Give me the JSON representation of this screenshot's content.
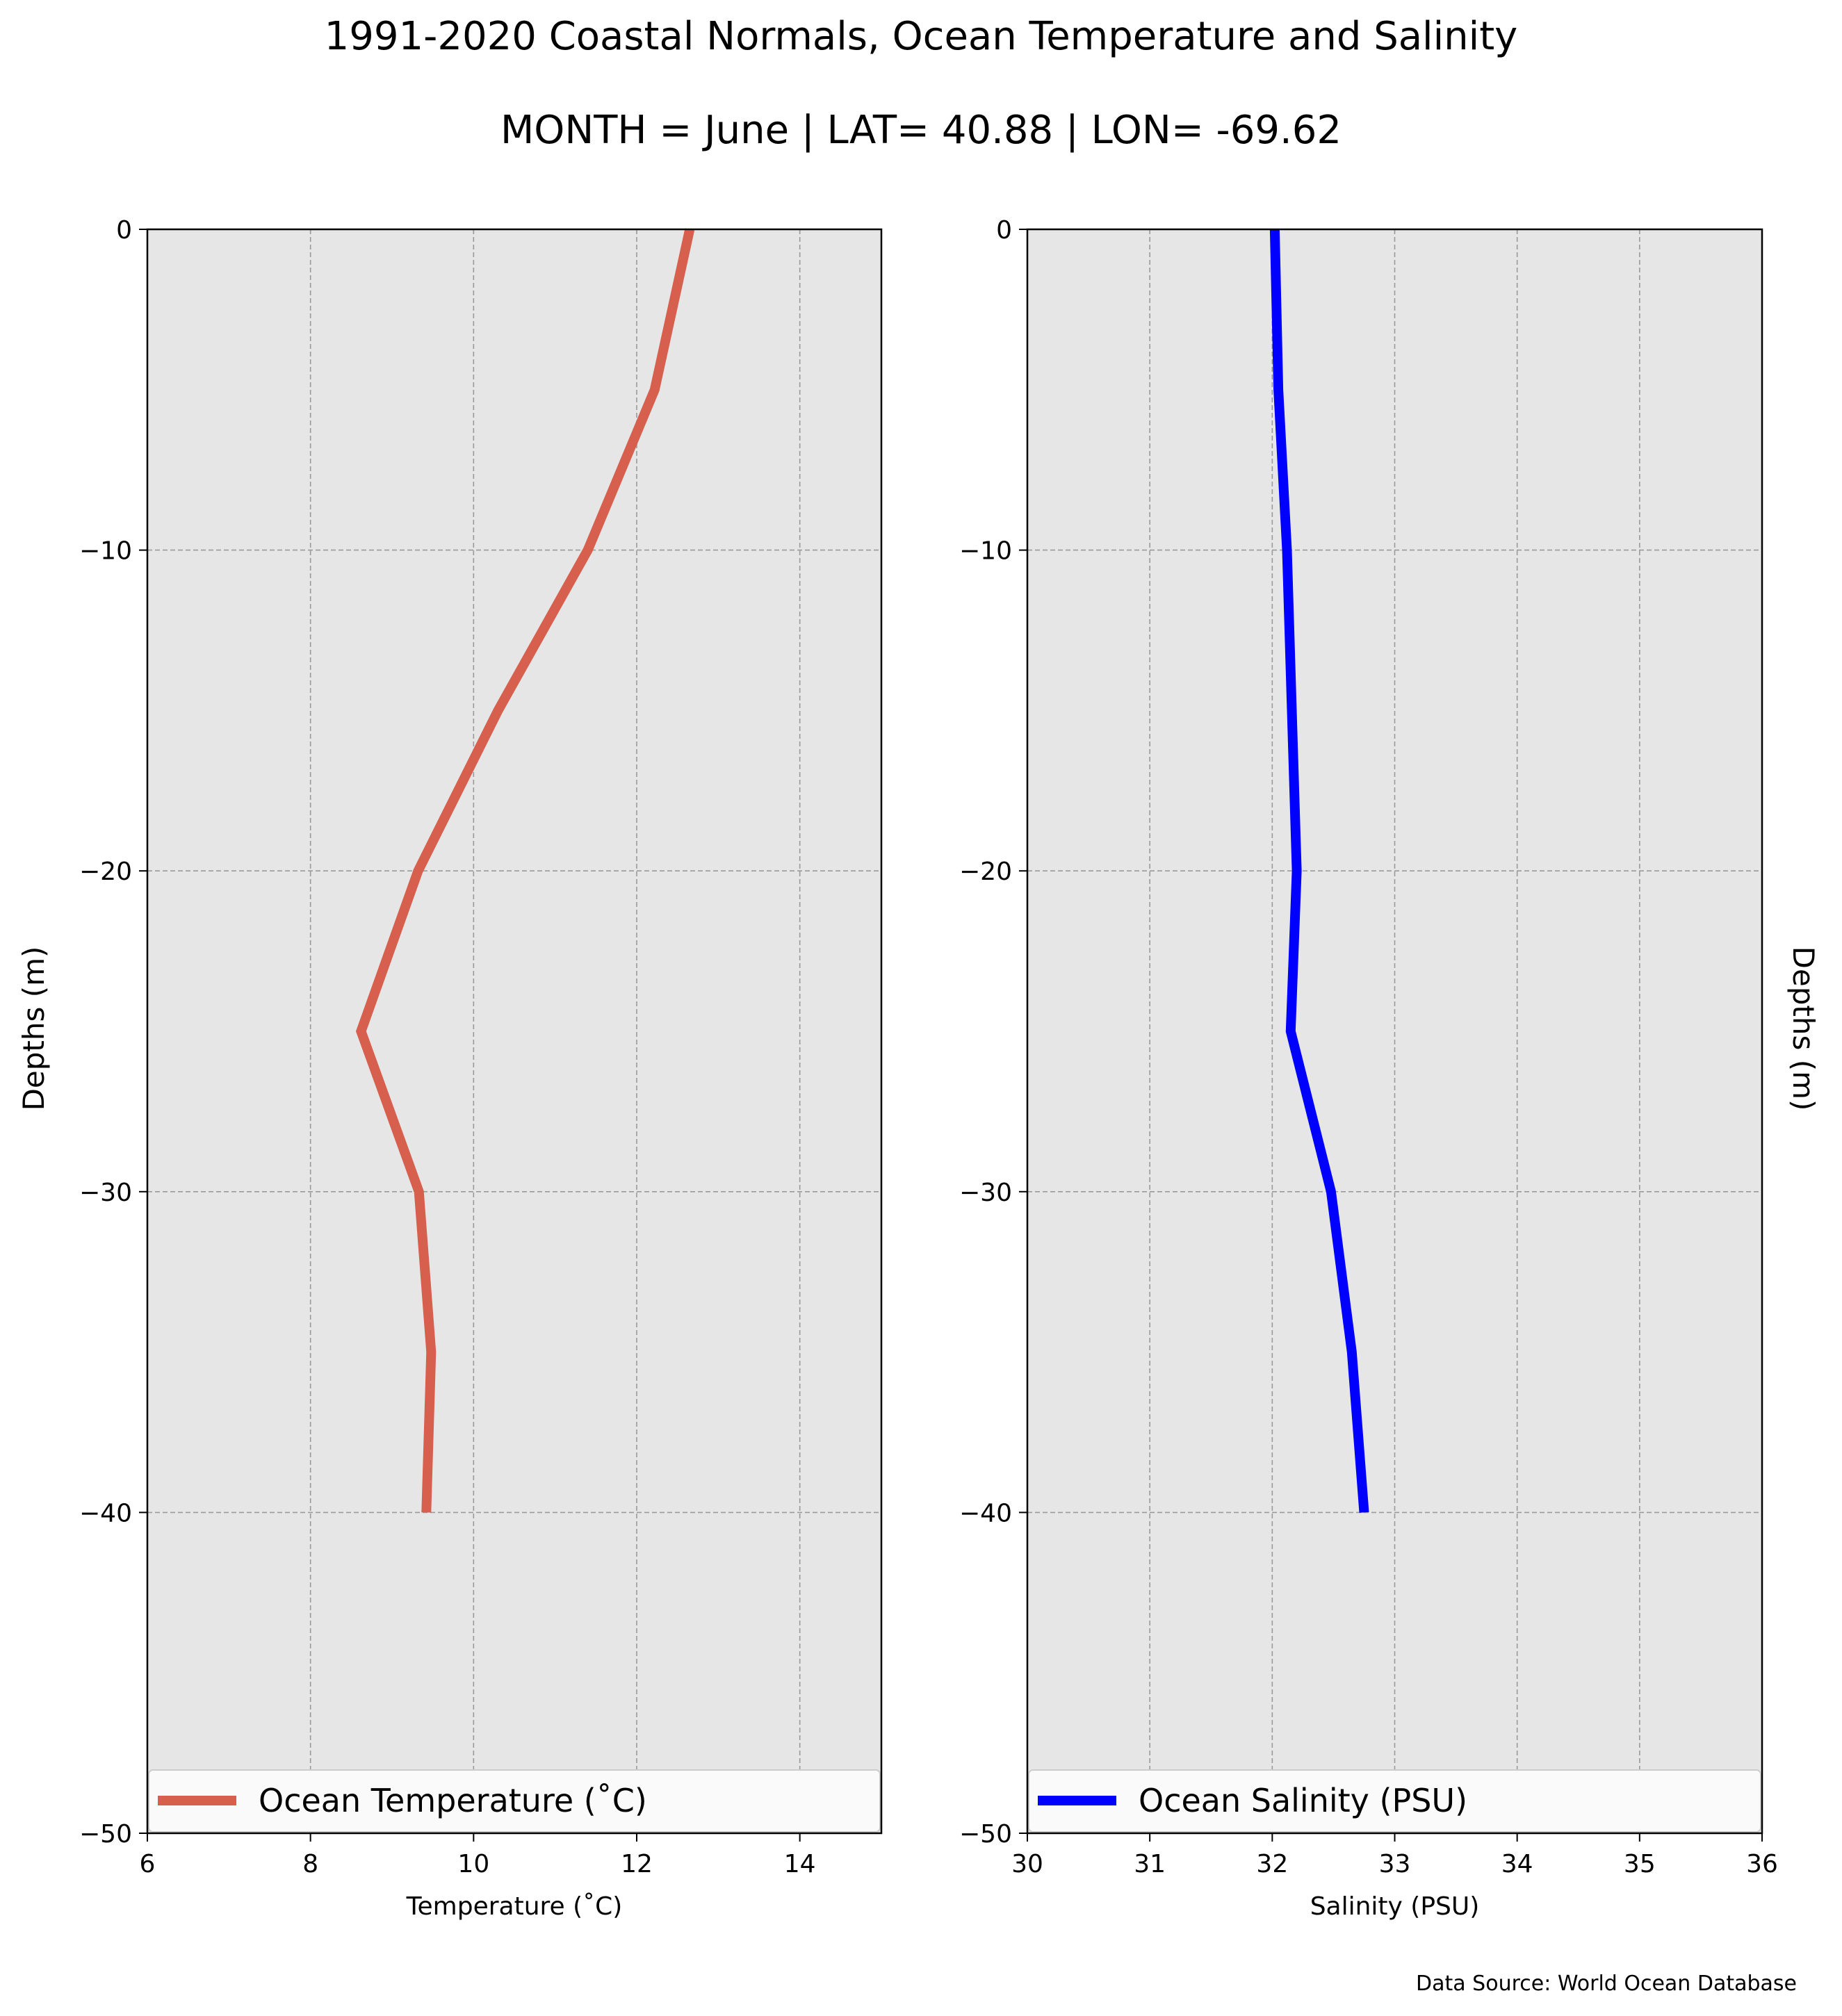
{
  "title": "1991-2020 Coastal Normals, Ocean Temperature and Salinity",
  "subtitle": "MONTH = June | LAT= 40.88 | LON= -69.62",
  "source": "Data Source: World Ocean Database",
  "colors": {
    "panel_bg": "#e6e6e6",
    "grid": "#9a9a9a",
    "temperature": "#d65f4e",
    "salinity": "#0000ff"
  },
  "chart_data": [
    {
      "type": "line",
      "xlabel": "Temperature ($^\\circ$C)",
      "xlabel_display": "Temperature (˚C)",
      "ylabel": "Depths (m)",
      "xlim": [
        6,
        15
      ],
      "ylim": [
        -50,
        0
      ],
      "xticks": [
        6,
        8,
        10,
        12,
        14
      ],
      "yticks": [
        0,
        -10,
        -20,
        -30,
        -40,
        -50
      ],
      "grid": true,
      "legend": "bottom",
      "series": [
        {
          "name": "Ocean Temperature (˚C)",
          "x": [
            12.65,
            12.22,
            11.4,
            10.3,
            9.32,
            8.62,
            9.33,
            9.48,
            9.42
          ],
          "y": [
            0,
            -5,
            -10,
            -15,
            -20,
            -25,
            -30,
            -35,
            -40
          ]
        }
      ]
    },
    {
      "type": "line",
      "xlabel": "Salinity (PSU)",
      "ylabel": "Depths (m)",
      "xlim": [
        30,
        36
      ],
      "ylim": [
        -50,
        0
      ],
      "xticks": [
        30,
        31,
        32,
        33,
        34,
        35,
        36
      ],
      "yticks": [
        0,
        -10,
        -20,
        -30,
        -40,
        -50
      ],
      "grid": true,
      "legend": "bottom",
      "series": [
        {
          "name": "Ocean Salinity (PSU)",
          "x": [
            32.02,
            32.05,
            32.12,
            32.16,
            32.2,
            32.15,
            32.48,
            32.65,
            32.75
          ],
          "y": [
            0,
            -5,
            -10,
            -15,
            -20,
            -25,
            -30,
            -35,
            -40
          ]
        }
      ]
    }
  ]
}
